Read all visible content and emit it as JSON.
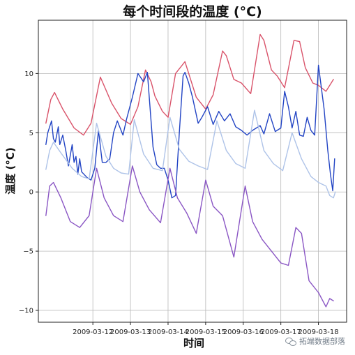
{
  "chart_data": {
    "type": "line",
    "title": "每个时间段的温度 (°C)",
    "xlabel": "时间",
    "ylabel": "温度 (°C)",
    "x_tick_labels": [
      "2009-03-12",
      "2009-03-13",
      "2009-03-14",
      "2009-03-15",
      "2009-03-16",
      "2009-03-17",
      "2009-03-18"
    ],
    "x_tick_positions_days": [
      11,
      12,
      13,
      14,
      15,
      16,
      17
    ],
    "xlim_days": [
      9.55,
      17.75
    ],
    "x_unit": "day of March 2009",
    "yticks": [
      -10,
      -5,
      0,
      5,
      10
    ],
    "ylim": [
      -11,
      14.5
    ],
    "grid": true,
    "legend": "none",
    "series": [
      {
        "color": "#d9536a",
        "x": [
          9.75,
          9.88,
          9.98,
          10.2,
          10.5,
          10.75,
          10.95,
          11.2,
          11.5,
          11.75,
          12.0,
          12.2,
          12.4,
          12.55,
          12.65,
          12.85,
          13.0,
          13.2,
          13.45,
          13.75,
          14.0,
          14.2,
          14.45,
          14.55,
          14.75,
          14.95,
          15.2,
          15.45,
          15.55,
          15.75,
          15.9,
          16.1,
          16.35,
          16.5,
          16.65,
          16.85,
          17.0,
          17.2,
          17.4
        ],
        "values": [
          5.8,
          7.8,
          8.4,
          7.0,
          5.4,
          4.8,
          5.8,
          9.7,
          7.5,
          6.2,
          5.7,
          7.2,
          10.3,
          9.3,
          8.1,
          6.8,
          6.3,
          10.0,
          11.0,
          8.0,
          7.0,
          8.2,
          11.9,
          11.5,
          9.5,
          9.2,
          8.3,
          13.3,
          12.8,
          10.3,
          9.8,
          8.8,
          12.8,
          12.7,
          10.5,
          9.2,
          9.0,
          8.5,
          9.5
        ]
      },
      {
        "color": "#2244c4",
        "x": [
          9.75,
          9.8,
          9.9,
          9.95,
          10.0,
          10.08,
          10.12,
          10.2,
          10.28,
          10.35,
          10.45,
          10.5,
          10.55,
          10.6,
          10.65,
          10.7,
          10.85,
          10.95,
          11.05,
          11.15,
          11.25,
          11.35,
          11.45,
          11.55,
          11.65,
          11.8,
          11.9,
          12.05,
          12.2,
          12.35,
          12.45,
          12.5,
          12.6,
          12.7,
          12.8,
          12.9,
          13.0,
          13.1,
          13.2,
          13.3,
          13.4,
          13.45,
          13.55,
          13.65,
          13.8,
          13.9,
          14.05,
          14.2,
          14.35,
          14.5,
          14.65,
          14.8,
          14.95,
          15.1,
          15.25,
          15.45,
          15.55,
          15.7,
          15.85,
          16.0,
          16.1,
          16.2,
          16.3,
          16.4,
          16.5,
          16.6,
          16.7,
          16.8,
          16.9,
          17.0,
          17.15,
          17.25,
          17.32,
          17.38,
          17.43
        ],
        "values": [
          4.0,
          5.0,
          6.0,
          4.5,
          4.2,
          5.5,
          4.0,
          4.8,
          3.5,
          2.2,
          4.0,
          2.5,
          3.0,
          1.5,
          2.8,
          1.7,
          1.2,
          1.0,
          2.0,
          5.2,
          2.5,
          2.5,
          2.8,
          5.0,
          6.0,
          4.8,
          6.2,
          8.0,
          10.0,
          9.3,
          10.1,
          8.0,
          3.8,
          2.3,
          2.0,
          2.0,
          1.0,
          -0.5,
          -0.3,
          5.0,
          9.8,
          10.1,
          9.2,
          8.0,
          5.8,
          6.3,
          7.2,
          5.7,
          6.8,
          6.0,
          6.6,
          5.5,
          5.2,
          4.8,
          5.2,
          5.6,
          4.9,
          6.6,
          5.1,
          5.4,
          8.5,
          7.2,
          5.4,
          6.8,
          4.8,
          4.7,
          6.3,
          5.2,
          4.8,
          10.7,
          7.0,
          3.5,
          1.5,
          0.1,
          2.8
        ]
      },
      {
        "color": "#aec3e8",
        "x": [
          9.75,
          9.85,
          9.95,
          10.15,
          10.45,
          10.7,
          10.9,
          11.1,
          11.35,
          11.55,
          11.75,
          11.95,
          12.1,
          12.35,
          12.6,
          12.85,
          13.05,
          13.3,
          13.55,
          13.8,
          14.05,
          14.3,
          14.55,
          14.8,
          15.05,
          15.3,
          15.55,
          15.8,
          16.05,
          16.3,
          16.55,
          16.8,
          17.0,
          17.2,
          17.3,
          17.4,
          17.45
        ],
        "values": [
          1.9,
          3.5,
          4.2,
          3.3,
          2.0,
          1.3,
          1.1,
          5.8,
          3.0,
          2.0,
          1.6,
          1.5,
          6.1,
          3.2,
          2.0,
          1.8,
          6.3,
          3.6,
          2.6,
          2.2,
          1.9,
          6.0,
          3.5,
          2.4,
          2.0,
          6.9,
          3.5,
          2.4,
          1.8,
          5.0,
          2.8,
          1.3,
          0.8,
          0.5,
          -0.3,
          -0.5,
          0.0
        ]
      },
      {
        "color": "#8a56c4",
        "x": [
          9.75,
          9.85,
          9.95,
          10.15,
          10.4,
          10.65,
          10.9,
          11.1,
          11.3,
          11.55,
          11.8,
          12.05,
          12.25,
          12.5,
          12.8,
          13.05,
          13.25,
          13.5,
          13.75,
          14.0,
          14.2,
          14.45,
          14.75,
          15.05,
          15.25,
          15.5,
          15.75,
          16.0,
          16.2,
          16.4,
          16.55,
          16.75,
          17.0,
          17.2,
          17.3,
          17.4
        ],
        "values": [
          -2.0,
          0.5,
          0.8,
          -0.5,
          -2.5,
          -3.0,
          -2.0,
          2.0,
          -0.5,
          -2.0,
          -2.5,
          2.2,
          0.0,
          -1.5,
          -2.6,
          2.0,
          -0.5,
          -1.8,
          -3.5,
          1.0,
          -1.2,
          -2.0,
          -5.5,
          0.5,
          -2.5,
          -4.0,
          -5.0,
          -6.0,
          -6.2,
          -3.0,
          -3.5,
          -7.5,
          -8.5,
          -9.7,
          -9.0,
          -9.2
        ]
      }
    ]
  },
  "watermark": {
    "text": "拓端数据部落",
    "icon": "wechat-icon"
  }
}
